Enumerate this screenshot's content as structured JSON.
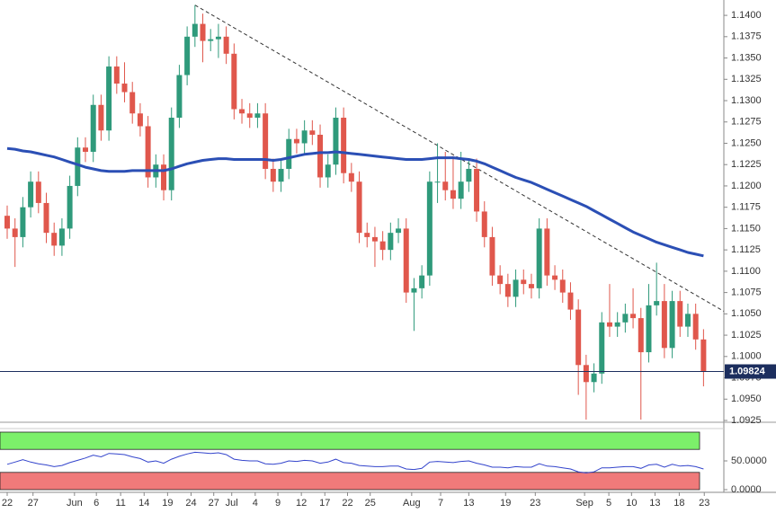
{
  "chart_data": {
    "type": "candlestick",
    "xlim": [
      -0.92,
      91.6
    ],
    "ylim": [
      1.0925,
      1.1418
    ],
    "yticks": [
      {
        "value": 1.0925,
        "label": "1.0925"
      },
      {
        "value": 1.095,
        "label": "1.0950"
      },
      {
        "value": 1.0975,
        "label": "1.0975"
      },
      {
        "value": 1.1,
        "label": "1.1000"
      },
      {
        "value": 1.1025,
        "label": "1.1025"
      },
      {
        "value": 1.105,
        "label": "1.1050"
      },
      {
        "value": 1.1075,
        "label": "1.1075"
      },
      {
        "value": 1.11,
        "label": "1.1100"
      },
      {
        "value": 1.1125,
        "label": "1.1125"
      },
      {
        "value": 1.115,
        "label": "1.1150"
      },
      {
        "value": 1.1175,
        "label": "1.1175"
      },
      {
        "value": 1.12,
        "label": "1.1200"
      },
      {
        "value": 1.1225,
        "label": "1.1225"
      },
      {
        "value": 1.125,
        "label": "1.1250"
      },
      {
        "value": 1.1275,
        "label": "1.1275"
      },
      {
        "value": 1.13,
        "label": "1.1300"
      },
      {
        "value": 1.1325,
        "label": "1.1325"
      },
      {
        "value": 1.135,
        "label": "1.1350"
      },
      {
        "value": 1.1375,
        "label": "1.1375"
      },
      {
        "value": 1.14,
        "label": "1.1400"
      }
    ],
    "xticks": [
      {
        "value": 0,
        "label": "22"
      },
      {
        "value": 3.3,
        "label": "27"
      },
      {
        "value": 8.6,
        "label": "Jun"
      },
      {
        "value": 11.4,
        "label": "6"
      },
      {
        "value": 14.5,
        "label": "11"
      },
      {
        "value": 17.5,
        "label": "14"
      },
      {
        "value": 20.5,
        "label": "19"
      },
      {
        "value": 23.5,
        "label": "24"
      },
      {
        "value": 26.4,
        "label": "27"
      },
      {
        "value": 28.7,
        "label": "Jul"
      },
      {
        "value": 31.7,
        "label": "4"
      },
      {
        "value": 34.6,
        "label": "9"
      },
      {
        "value": 37.6,
        "label": "12"
      },
      {
        "value": 40.6,
        "label": "17"
      },
      {
        "value": 43.5,
        "label": "22"
      },
      {
        "value": 46.4,
        "label": "25"
      },
      {
        "value": 51.7,
        "label": "Aug"
      },
      {
        "value": 55.4,
        "label": "7"
      },
      {
        "value": 59,
        "label": "13"
      },
      {
        "value": 63.7,
        "label": "19"
      },
      {
        "value": 67.5,
        "label": "23"
      },
      {
        "value": 73.8,
        "label": "Sep"
      },
      {
        "value": 76.9,
        "label": "5"
      },
      {
        "value": 79.8,
        "label": "10"
      },
      {
        "value": 82.8,
        "label": "13"
      },
      {
        "value": 85.9,
        "label": "18"
      },
      {
        "value": 89.1,
        "label": "23"
      }
    ],
    "up_color": "#2f9a7b",
    "down_color": "#e0574c",
    "open": [
      1.1165,
      1.115,
      1.114,
      1.1175,
      1.1205,
      1.118,
      1.1145,
      1.113,
      1.115,
      1.12,
      1.1245,
      1.124,
      1.1295,
      1.1265,
      1.134,
      1.132,
      1.131,
      1.1285,
      1.127,
      1.121,
      1.1225,
      1.1195,
      1.128,
      1.133,
      1.1375,
      1.139,
      1.137,
      1.1372,
      1.1375,
      1.1355,
      1.129,
      1.1285,
      1.128,
      1.1285,
      1.122,
      1.1205,
      1.122,
      1.1255,
      1.125,
      1.1265,
      1.126,
      1.121,
      1.1225,
      1.128,
      1.1215,
      1.1205,
      1.1145,
      1.114,
      1.1135,
      1.1125,
      1.1145,
      1.115,
      1.1075,
      1.108,
      1.1095,
      1.1205,
      1.1205,
      1.1195,
      1.1185,
      1.1205,
      1.122,
      1.117,
      1.114,
      1.1095,
      1.1085,
      1.107,
      1.109,
      1.1085,
      1.108,
      1.115,
      1.1095,
      1.109,
      1.1075,
      1.1055,
      1.099,
      1.097,
      1.098,
      1.104,
      1.1035,
      1.104,
      1.105,
      1.1045,
      1.1005,
      1.106,
      1.1065,
      1.101,
      1.1065,
      1.1035,
      1.105,
      1.102
    ],
    "high": [
      1.1177,
      1.1162,
      1.1187,
      1.1217,
      1.1217,
      1.1192,
      1.1157,
      1.1162,
      1.1212,
      1.1257,
      1.1257,
      1.1307,
      1.1307,
      1.1352,
      1.1352,
      1.1345,
      1.1322,
      1.1297,
      1.1282,
      1.1237,
      1.1237,
      1.1292,
      1.1342,
      1.1387,
      1.1412,
      1.1402,
      1.1384,
      1.139,
      1.1387,
      1.1367,
      1.1302,
      1.1297,
      1.1297,
      1.1297,
      1.1232,
      1.1232,
      1.1267,
      1.1267,
      1.1277,
      1.1277,
      1.1272,
      1.1237,
      1.1292,
      1.1292,
      1.1227,
      1.1217,
      1.1157,
      1.1152,
      1.1147,
      1.1157,
      1.1162,
      1.1162,
      1.1092,
      1.1107,
      1.1217,
      1.125,
      1.124,
      1.1235,
      1.124,
      1.1232,
      1.1232,
      1.1182,
      1.1152,
      1.1107,
      1.1097,
      1.1102,
      1.1102,
      1.1097,
      1.1162,
      1.1162,
      1.1107,
      1.1102,
      1.1087,
      1.1067,
      1.1002,
      1.0992,
      1.1052,
      1.1085,
      1.1052,
      1.1062,
      1.108,
      1.1057,
      1.1085,
      1.111,
      1.1085,
      1.1077,
      1.1077,
      1.1062,
      1.1062,
      1.1032
    ],
    "low": [
      1.1138,
      1.1105,
      1.1128,
      1.1163,
      1.1168,
      1.1133,
      1.1118,
      1.1118,
      1.1138,
      1.1188,
      1.1228,
      1.1228,
      1.1253,
      1.1253,
      1.1308,
      1.1298,
      1.1273,
      1.1258,
      1.1198,
      1.1198,
      1.1183,
      1.1183,
      1.1268,
      1.1318,
      1.1363,
      1.1345,
      1.1358,
      1.135,
      1.1343,
      1.1278,
      1.1273,
      1.1268,
      1.1268,
      1.1208,
      1.1193,
      1.1193,
      1.1208,
      1.1238,
      1.1238,
      1.1248,
      1.1198,
      1.1198,
      1.1213,
      1.1203,
      1.1193,
      1.1133,
      1.1128,
      1.1105,
      1.1113,
      1.1113,
      1.1133,
      1.1063,
      1.103,
      1.1068,
      1.1083,
      1.118,
      1.1183,
      1.1173,
      1.1173,
      1.1193,
      1.1158,
      1.1128,
      1.1083,
      1.1073,
      1.1058,
      1.1058,
      1.1073,
      1.1068,
      1.1068,
      1.1083,
      1.1078,
      1.1063,
      1.1043,
      1.0955,
      1.0926,
      1.0958,
      1.0968,
      1.1023,
      1.1023,
      1.1028,
      1.1033,
      1.0926,
      1.0993,
      1.1048,
      1.0998,
      1.0998,
      1.1023,
      1.1023,
      1.1008,
      1.0965
    ],
    "close": [
      1.115,
      1.114,
      1.1175,
      1.1205,
      1.118,
      1.1145,
      1.113,
      1.115,
      1.12,
      1.1245,
      1.124,
      1.1295,
      1.1265,
      1.134,
      1.132,
      1.131,
      1.1285,
      1.127,
      1.121,
      1.1225,
      1.1195,
      1.128,
      1.133,
      1.1375,
      1.139,
      1.137,
      1.1372,
      1.1375,
      1.1355,
      1.129,
      1.1285,
      1.128,
      1.1285,
      1.122,
      1.1205,
      1.122,
      1.1255,
      1.125,
      1.1265,
      1.126,
      1.121,
      1.1225,
      1.128,
      1.1215,
      1.1205,
      1.1145,
      1.114,
      1.1135,
      1.1125,
      1.1145,
      1.115,
      1.1075,
      1.108,
      1.1095,
      1.1205,
      1.1205,
      1.1195,
      1.1185,
      1.1205,
      1.122,
      1.117,
      1.114,
      1.1095,
      1.1085,
      1.107,
      1.109,
      1.1085,
      1.108,
      1.115,
      1.1095,
      1.109,
      1.1075,
      1.1055,
      1.099,
      1.097,
      1.098,
      1.104,
      1.1035,
      1.104,
      1.105,
      1.1045,
      1.1005,
      1.106,
      1.1065,
      1.101,
      1.1065,
      1.1035,
      1.105,
      1.102,
      1.0982
    ],
    "moving_average": {
      "color": "#2b4fb5",
      "values": [
        1.1244,
        1.1243,
        1.1241,
        1.124,
        1.1238,
        1.1236,
        1.1234,
        1.1231,
        1.1228,
        1.1225,
        1.1222,
        1.122,
        1.1218,
        1.1217,
        1.1217,
        1.1217,
        1.1218,
        1.1218,
        1.1218,
        1.1218,
        1.1218,
        1.122,
        1.1223,
        1.1226,
        1.1228,
        1.123,
        1.1231,
        1.1232,
        1.1232,
        1.1231,
        1.1231,
        1.1231,
        1.1231,
        1.1231,
        1.123,
        1.1231,
        1.1233,
        1.1235,
        1.1237,
        1.1238,
        1.1239,
        1.1239,
        1.124,
        1.1239,
        1.1238,
        1.1237,
        1.1236,
        1.1235,
        1.1234,
        1.1233,
        1.1232,
        1.1231,
        1.1231,
        1.1231,
        1.1232,
        1.1233,
        1.1233,
        1.1233,
        1.1232,
        1.1231,
        1.1229,
        1.1226,
        1.1222,
        1.1218,
        1.1214,
        1.121,
        1.1207,
        1.1204,
        1.12,
        1.1196,
        1.1192,
        1.1188,
        1.1184,
        1.118,
        1.1176,
        1.1171,
        1.1166,
        1.1161,
        1.1156,
        1.1151,
        1.1146,
        1.1142,
        1.1138,
        1.1134,
        1.1131,
        1.1128,
        1.1125,
        1.1122,
        1.112,
        1.1118
      ]
    },
    "trendline": {
      "from": [
        24,
        1.1412
      ],
      "to": [
        91.6,
        1.1053
      ]
    },
    "last_price": 1.09824,
    "indicator": {
      "color": "#3344cc",
      "ylim": [
        0,
        100
      ],
      "yticks": [
        {
          "value": 0,
          "label": "0.0000"
        },
        {
          "value": 50,
          "label": "50.0000"
        }
      ],
      "bands": [
        {
          "from": 70,
          "to": 100,
          "color": "#7cf06a"
        },
        {
          "from": 0,
          "to": 30,
          "color": "#f07a7a"
        }
      ],
      "values": [
        44,
        48,
        52,
        48,
        45,
        43,
        40,
        42,
        47,
        51,
        55,
        60,
        57,
        63,
        62,
        61,
        57,
        54,
        48,
        50,
        46,
        53,
        58,
        62,
        65,
        64,
        63,
        64,
        61,
        53,
        51,
        50,
        50,
        45,
        44,
        46,
        50,
        49,
        51,
        50,
        46,
        48,
        53,
        47,
        46,
        42,
        41,
        40,
        40,
        41,
        41,
        36,
        35,
        37,
        48,
        49,
        48,
        47,
        49,
        50,
        46,
        43,
        39,
        39,
        38,
        40,
        39,
        39,
        45,
        41,
        40,
        38,
        36,
        31,
        29,
        31,
        38,
        38,
        39,
        40,
        40,
        37,
        43,
        44,
        39,
        44,
        41,
        42,
        40,
        36
      ]
    }
  }
}
